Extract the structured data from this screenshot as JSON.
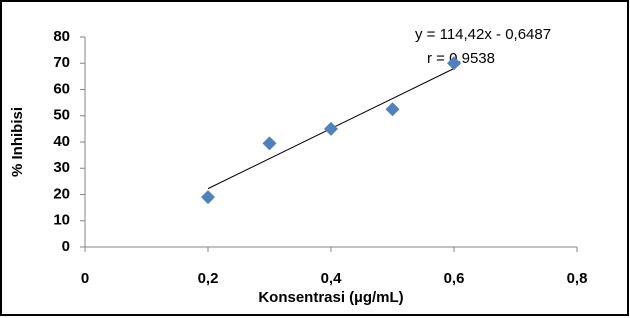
{
  "chart_data": {
    "type": "scatter",
    "x_label": "Konsentrasi (µg/mL)",
    "y_label": "% Inhibisi",
    "x": [
      0.2,
      0.3,
      0.4,
      0.5,
      0.6
    ],
    "series": [
      {
        "color": "#4f81bd",
        "values": [
          19,
          39.5,
          45,
          52.5,
          70
        ]
      }
    ],
    "trendline": {
      "x": [
        0.2,
        0.6
      ],
      "values": [
        22.24,
        68.0
      ],
      "color": "#000000"
    },
    "annotations": [
      "y = 114,42x - 0,6487",
      "r = 0,9538"
    ],
    "xlim": [
      0,
      0.8
    ],
    "xticks": [
      0,
      {
        "value": 0.2,
        "label": "0,2"
      },
      {
        "value": 0.4,
        "label": "0,4"
      },
      {
        "value": 0.6,
        "label": "0,6"
      },
      {
        "value": 0.8,
        "label": "0,8"
      }
    ],
    "ylim": [
      0,
      80
    ],
    "yticks": [
      0,
      10,
      20,
      30,
      40,
      50,
      60,
      70,
      80
    ],
    "grid": false
  }
}
